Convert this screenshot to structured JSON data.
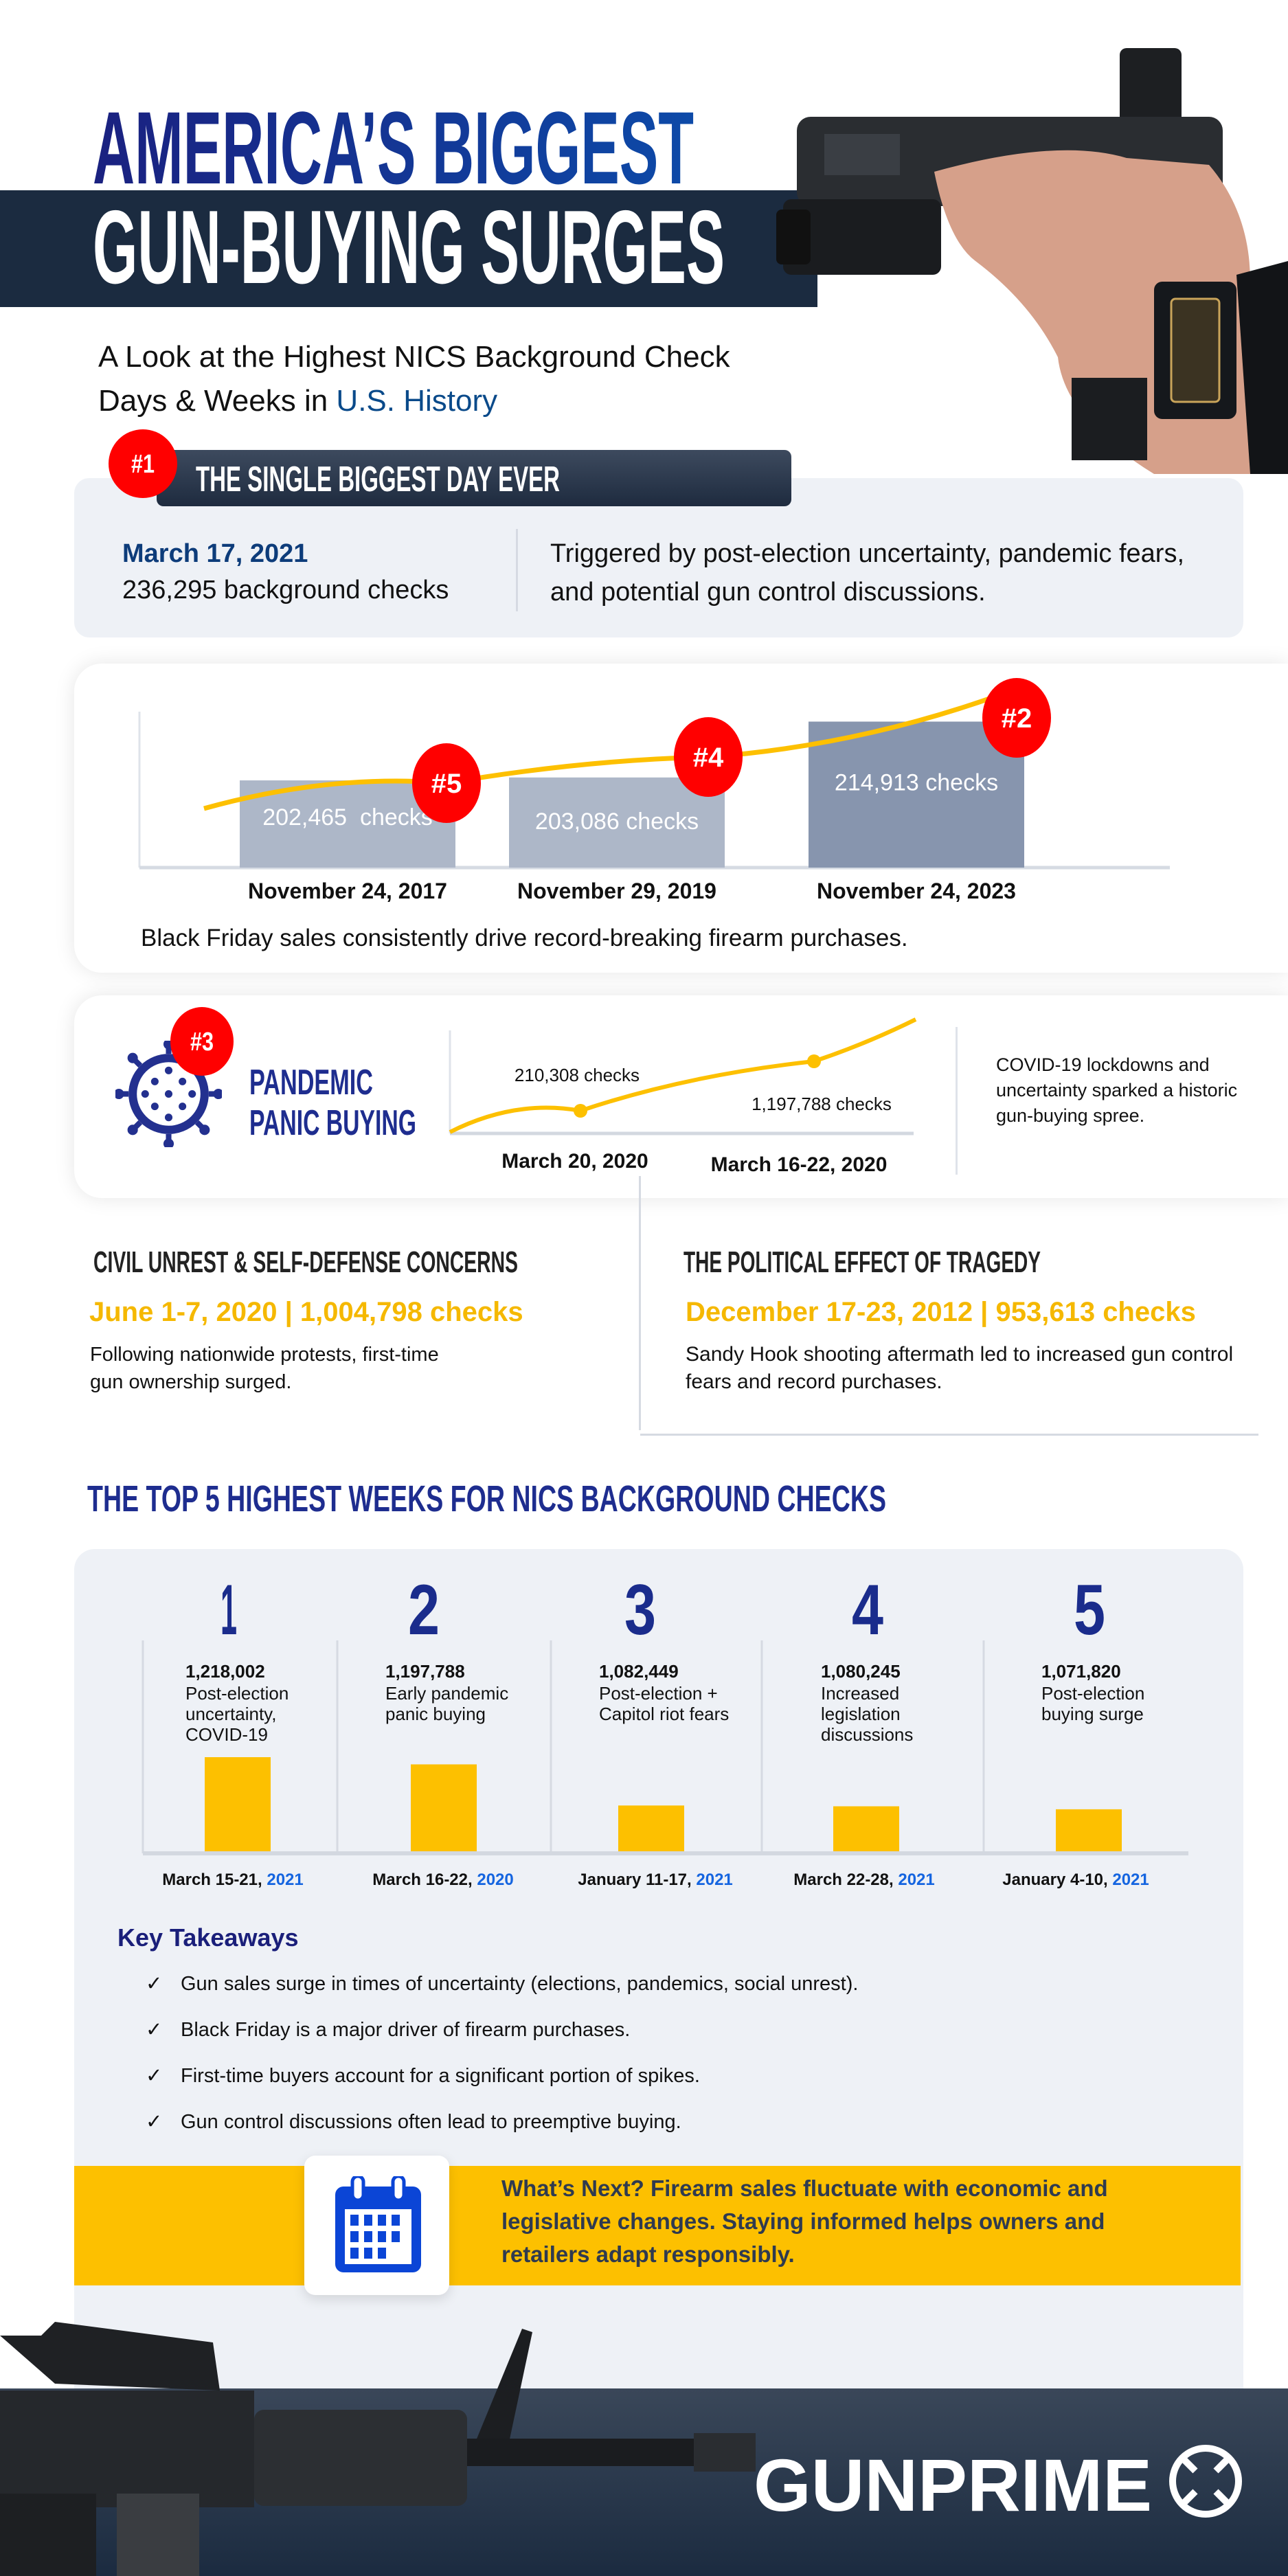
{
  "header": {
    "title_line1": "AMERICA’S BIGGEST",
    "title_line2": "GUN-BUYING SURGES",
    "subtitle_line1": "A Look at the Highest NICS Background Check",
    "subtitle_line2_prefix": "Days & Weeks in ",
    "subtitle_line2_highlight": "U.S. History"
  },
  "biggest_day": {
    "badge": "#1",
    "heading": "THE SINGLE BIGGEST DAY EVER",
    "date": "March 17, 2021",
    "checks": "236,295 background checks",
    "description": "Triggered by post-election uncertainty, pandemic fears, and potential gun control discussions."
  },
  "black_friday": {
    "caption": "Black Friday sales consistently drive record-breaking firearm purchases.",
    "bars": [
      {
        "badge": "#5",
        "value": 202465,
        "label": "202,465  checks",
        "date": "November 24, 2017"
      },
      {
        "badge": "#4",
        "value": 203086,
        "label": "203,086 checks",
        "date": "November 29, 2019"
      },
      {
        "badge": "#2",
        "value": 214913,
        "label": "214,913 checks",
        "date": "November 24, 2023"
      }
    ]
  },
  "pandemic": {
    "badge": "#3",
    "title_line1": "PANDEMIC",
    "title_line2": "PANIC BUYING",
    "point1_label": "210,308 checks",
    "point1_date": "March 20, 2020",
    "point2_label": "1,197,788 checks",
    "point2_date": "March 16-22, 2020",
    "description": "COVID-19 lockdowns and uncertainty sparked a historic gun-buying spree."
  },
  "civil_unrest": {
    "heading": "CIVIL UNREST & SELF-DEFENSE CONCERNS",
    "stat": "June 1-7, 2020 | 1,004,798 checks",
    "description": "Following nationwide protests, first-time gun ownership surged."
  },
  "tragedy": {
    "heading": "THE POLITICAL EFFECT OF TRAGEDY",
    "stat": "December 17-23, 2012 | 953,613 checks",
    "description": "Sandy Hook shooting aftermath led to increased gun control fears and record purchases."
  },
  "top5": {
    "heading": "THE TOP 5 HIGHEST WEEKS FOR NICS BACKGROUND CHECKS",
    "weeks": [
      {
        "rank": "1",
        "value": 1218002,
        "value_label": "1,218,002",
        "desc": "Post-election uncertainty, COVID-19",
        "date": "March 15-21, ",
        "year": "2021"
      },
      {
        "rank": "2",
        "value": 1197788,
        "value_label": "1,197,788",
        "desc": "Early pandemic panic buying",
        "date": "March 16-22, ",
        "year": "2020"
      },
      {
        "rank": "3",
        "value": 1082449,
        "value_label": "1,082,449",
        "desc": "Post-election + Capitol riot fears",
        "date": "January 11-17, ",
        "year": "2021"
      },
      {
        "rank": "4",
        "value": 1080245,
        "value_label": "1,080,245",
        "desc": "Increased legislation discussions",
        "date": "March 22-28, ",
        "year": "2021"
      },
      {
        "rank": "5",
        "value": 1071820,
        "value_label": "1,071,820",
        "desc": "Post-election buying surge",
        "date": "January 4-10, ",
        "year": "2021"
      }
    ]
  },
  "takeaways": {
    "heading": "Key Takeaways",
    "check_glyph": "✓",
    "items": [
      "Gun sales surge in times of uncertainty (elections, pandemics, social unrest).",
      "Black Friday is a major driver of firearm purchases.",
      "First-time buyers account for a significant portion of spikes.",
      "Gun control discussions often lead to preemptive buying."
    ]
  },
  "whats_next": {
    "icon": "calendar-icon",
    "text": "What’s Next? Firearm sales fluctuate with economic and legislative changes. Staying informed helps owners and retailers adapt responsibly."
  },
  "footer": {
    "logo_text": "GUNPRIME"
  },
  "colors": {
    "navy": "#1b2b40",
    "title_blue": "#0d2f8f",
    "badge_red": "#ff0000",
    "accent_yellow": "#fdc000",
    "card_gray": "#eef1f6",
    "link_blue": "#1565e0"
  }
}
